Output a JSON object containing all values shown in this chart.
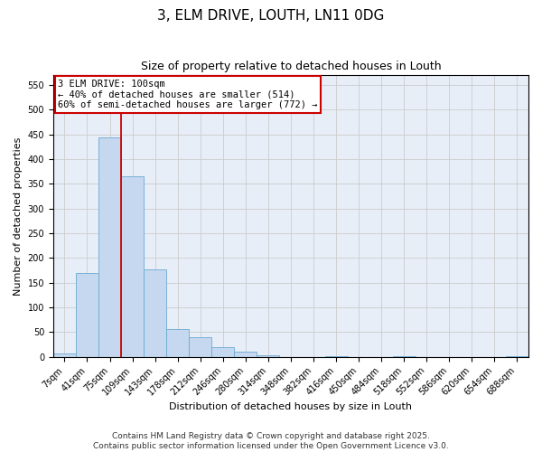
{
  "title": "3, ELM DRIVE, LOUTH, LN11 0DG",
  "subtitle": "Size of property relative to detached houses in Louth",
  "xlabel": "Distribution of detached houses by size in Louth",
  "ylabel": "Number of detached properties",
  "bar_labels": [
    "7sqm",
    "41sqm",
    "75sqm",
    "109sqm",
    "143sqm",
    "178sqm",
    "212sqm",
    "246sqm",
    "280sqm",
    "314sqm",
    "348sqm",
    "382sqm",
    "416sqm",
    "450sqm",
    "484sqm",
    "518sqm",
    "552sqm",
    "586sqm",
    "620sqm",
    "654sqm",
    "688sqm"
  ],
  "bar_values": [
    7,
    170,
    443,
    365,
    177,
    57,
    39,
    20,
    10,
    4,
    0,
    0,
    1,
    0,
    0,
    2,
    0,
    0,
    0,
    0,
    2
  ],
  "bar_color": "#c5d8ef",
  "bar_edge_color": "#6aabd2",
  "bar_width": 1.0,
  "vline_x": 2.5,
  "vline_color": "#cc0000",
  "annotation_text": "3 ELM DRIVE: 100sqm\n← 40% of detached houses are smaller (514)\n60% of semi-detached houses are larger (772) →",
  "ylim": [
    0,
    570
  ],
  "yticks": [
    0,
    50,
    100,
    150,
    200,
    250,
    300,
    350,
    400,
    450,
    500,
    550
  ],
  "grid_color": "#cccccc",
  "background_color": "#e8eef7",
  "footer_line1": "Contains HM Land Registry data © Crown copyright and database right 2025.",
  "footer_line2": "Contains public sector information licensed under the Open Government Licence v3.0.",
  "title_fontsize": 11,
  "subtitle_fontsize": 9,
  "axis_label_fontsize": 8,
  "tick_fontsize": 7,
  "annotation_fontsize": 7.5,
  "footer_fontsize": 6.5
}
